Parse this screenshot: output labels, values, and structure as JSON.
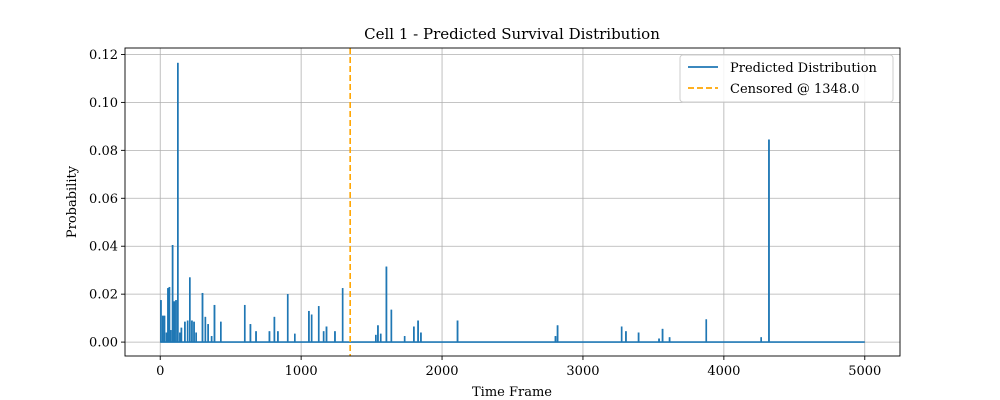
{
  "chart_data": {
    "type": "line",
    "title": "Cell 1 - Predicted Survival Distribution",
    "xlabel": "Time Frame",
    "ylabel": "Probability",
    "xlim": [
      -250,
      5250
    ],
    "ylim": [
      -0.0058,
      0.1227
    ],
    "x_ticks": [
      0,
      1000,
      2000,
      3000,
      4000,
      5000
    ],
    "y_ticks": [
      0.0,
      0.02,
      0.04,
      0.06,
      0.08,
      0.1,
      0.12
    ],
    "y_tick_labels": [
      "0.00",
      "0.02",
      "0.04",
      "0.06",
      "0.08",
      "0.10",
      "0.12"
    ],
    "grid": true,
    "legend_position": "top-right",
    "x_range": [
      0,
      5000
    ],
    "series": [
      {
        "name": "Predicted Distribution",
        "color": "#1f77b4",
        "spikes": [
          [
            5,
            0.0175
          ],
          [
            18,
            0.011
          ],
          [
            30,
            0.011
          ],
          [
            45,
            0.004
          ],
          [
            55,
            0.0225
          ],
          [
            65,
            0.023
          ],
          [
            75,
            0.005
          ],
          [
            88,
            0.0405
          ],
          [
            100,
            0.017
          ],
          [
            112,
            0.0175
          ],
          [
            125,
            0.1165
          ],
          [
            140,
            0.004
          ],
          [
            150,
            0.006
          ],
          [
            175,
            0.0085
          ],
          [
            195,
            0.009
          ],
          [
            210,
            0.027
          ],
          [
            225,
            0.009
          ],
          [
            240,
            0.0085
          ],
          [
            255,
            0.004
          ],
          [
            300,
            0.0205
          ],
          [
            320,
            0.0105
          ],
          [
            340,
            0.0075
          ],
          [
            365,
            0.0025
          ],
          [
            385,
            0.0155
          ],
          [
            430,
            0.0085
          ],
          [
            600,
            0.0155
          ],
          [
            640,
            0.0075
          ],
          [
            680,
            0.0045
          ],
          [
            775,
            0.0045
          ],
          [
            810,
            0.0105
          ],
          [
            835,
            0.0045
          ],
          [
            905,
            0.02
          ],
          [
            955,
            0.0035
          ],
          [
            1055,
            0.013
          ],
          [
            1075,
            0.0115
          ],
          [
            1125,
            0.015
          ],
          [
            1160,
            0.0045
          ],
          [
            1180,
            0.0065
          ],
          [
            1240,
            0.0045
          ],
          [
            1295,
            0.0225
          ],
          [
            1530,
            0.003
          ],
          [
            1545,
            0.007
          ],
          [
            1565,
            0.0035
          ],
          [
            1605,
            0.0315
          ],
          [
            1640,
            0.0135
          ],
          [
            1735,
            0.0025
          ],
          [
            1800,
            0.0065
          ],
          [
            1830,
            0.009
          ],
          [
            1850,
            0.004
          ],
          [
            2110,
            0.009
          ],
          [
            2805,
            0.0025
          ],
          [
            2820,
            0.007
          ],
          [
            3275,
            0.0065
          ],
          [
            3305,
            0.0045
          ],
          [
            3395,
            0.004
          ],
          [
            3540,
            0.0015
          ],
          [
            3565,
            0.0055
          ],
          [
            3615,
            0.002
          ],
          [
            3875,
            0.0095
          ],
          [
            4265,
            0.002
          ],
          [
            4320,
            0.0845
          ]
        ]
      },
      {
        "name": "Censored @ 1348.0",
        "type": "vline",
        "x": 1348.0,
        "color": "#ffa500",
        "dash": "dashed"
      }
    ]
  }
}
